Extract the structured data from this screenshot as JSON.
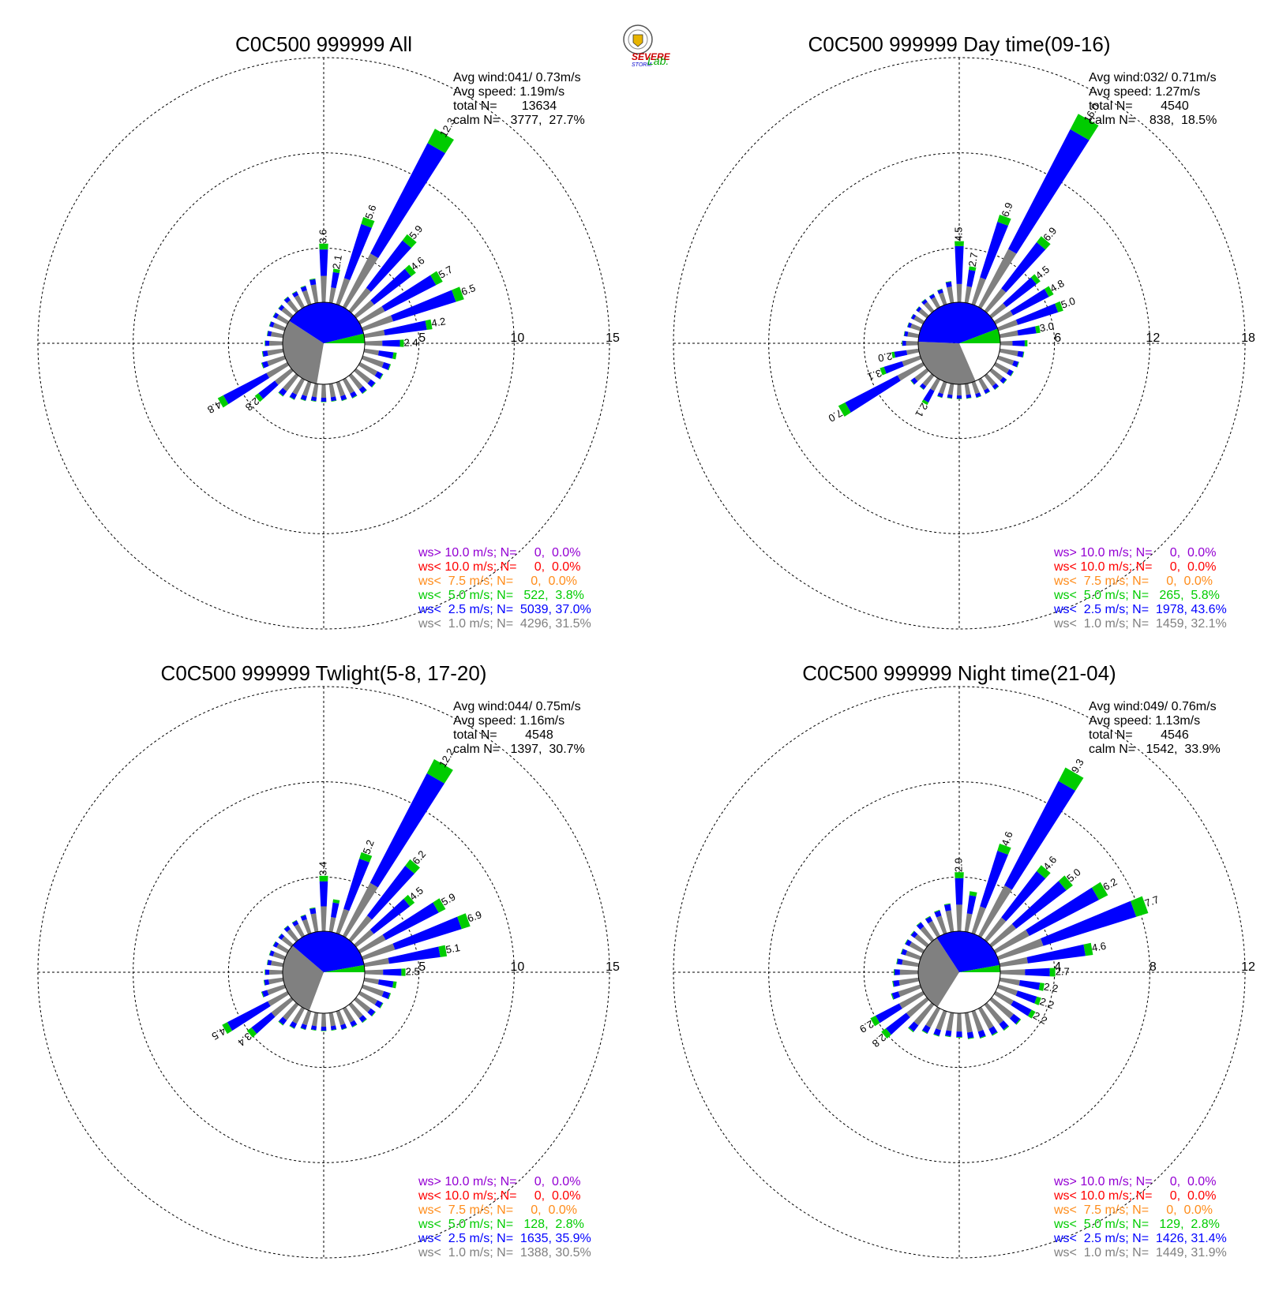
{
  "colors": {
    "ws_gt10": "#9400d3",
    "ws_lt10": "#ff0000",
    "ws_lt7_5": "#ff8c1a",
    "ws_lt5": "#00cc00",
    "ws_lt2_5": "#0000ff",
    "ws_lt1": "#808080",
    "grid": "#000000"
  },
  "logo": {
    "text_top": "SEVERE",
    "text_bottom": "STORM",
    "text_lab": "Lab."
  },
  "chart_data": [
    {
      "type": "wind-rose",
      "title": "C0C500 999999 All",
      "radial_ticks": [
        5,
        10,
        15
      ],
      "rmax": 15,
      "grid": true,
      "stats": {
        "avg_wind": "Avg wind:041/ 0.73m/s",
        "avg_speed": "Avg speed: 1.19m/s",
        "total": "total N=       13634",
        "calm": "calm N=   3777,  27.7%"
      },
      "legend": [
        {
          "text": "ws> 10.0 m/s; N=     0,  0.0%",
          "color_key": "ws_gt10"
        },
        {
          "text": "ws< 10.0 m/s; N=     0,  0.0%",
          "color_key": "ws_lt10"
        },
        {
          "text": "ws<  7.5 m/s; N=     0,  0.0%",
          "color_key": "ws_lt7_5"
        },
        {
          "text": "ws<  5.0 m/s; N=   522,  3.8%",
          "color_key": "ws_lt5"
        },
        {
          "text": "ws<  2.5 m/s; N=  5039, 37.0%",
          "color_key": "ws_lt2_5"
        },
        {
          "text": "ws<  1.0 m/s; N=  4296, 31.5%",
          "color_key": "ws_lt1"
        }
      ],
      "calm_pie": [
        27.7,
        31.5,
        37.0,
        3.8
      ],
      "petals": [
        {
          "dir": 0,
          "total": 3.6,
          "label": "3.6"
        },
        {
          "dir": 10,
          "total": 2.1,
          "label": "2.1"
        },
        {
          "dir": 20,
          "total": 5.6,
          "label": "5.6"
        },
        {
          "dir": 30,
          "total": 12.3,
          "label": "12.3"
        },
        {
          "dir": 40,
          "total": 5.9,
          "label": "5.9"
        },
        {
          "dir": 50,
          "total": 4.6,
          "label": "4.6"
        },
        {
          "dir": 60,
          "total": 5.7,
          "label": "5.7"
        },
        {
          "dir": 70,
          "total": 6.5,
          "label": "6.5"
        },
        {
          "dir": 80,
          "total": 4.2,
          "label": "4.2"
        },
        {
          "dir": 90,
          "total": 2.4,
          "label": "2.4"
        },
        {
          "dir": 100,
          "total": 2.0
        },
        {
          "dir": 110,
          "total": 1.8
        },
        {
          "dir": 120,
          "total": 1.6
        },
        {
          "dir": 130,
          "total": 1.5
        },
        {
          "dir": 140,
          "total": 1.4
        },
        {
          "dir": 150,
          "total": 1.3
        },
        {
          "dir": 160,
          "total": 1.2
        },
        {
          "dir": 170,
          "total": 1.1
        },
        {
          "dir": 180,
          "total": 1.1
        },
        {
          "dir": 190,
          "total": 1.1
        },
        {
          "dir": 200,
          "total": 1.2
        },
        {
          "dir": 210,
          "total": 1.4
        },
        {
          "dir": 220,
          "total": 1.6
        },
        {
          "dir": 230,
          "total": 2.8,
          "label": "2.8"
        },
        {
          "dir": 240,
          "total": 4.8,
          "label": "4.8"
        },
        {
          "dir": 250,
          "total": 1.5
        },
        {
          "dir": 260,
          "total": 1.3
        },
        {
          "dir": 270,
          "total": 1.1
        },
        {
          "dir": 280,
          "total": 1.0
        },
        {
          "dir": 290,
          "total": 1.0
        },
        {
          "dir": 300,
          "total": 1.0
        },
        {
          "dir": 310,
          "total": 1.0
        },
        {
          "dir": 320,
          "total": 1.1
        },
        {
          "dir": 330,
          "total": 1.1
        },
        {
          "dir": 340,
          "total": 1.2
        },
        {
          "dir": 350,
          "total": 1.5
        }
      ]
    },
    {
      "type": "wind-rose",
      "title": "C0C500 999999 Day time(09-16)",
      "radial_ticks": [
        6,
        12,
        18
      ],
      "rmax": 18,
      "grid": true,
      "stats": {
        "avg_wind": "Avg wind:032/ 0.71m/s",
        "avg_speed": "Avg speed: 1.27m/s",
        "total": "total N=        4540",
        "calm": "calm N=    838,  18.5%"
      },
      "legend": [
        {
          "text": "ws> 10.0 m/s; N=     0,  0.0%",
          "color_key": "ws_gt10"
        },
        {
          "text": "ws< 10.0 m/s; N=     0,  0.0%",
          "color_key": "ws_lt10"
        },
        {
          "text": "ws<  7.5 m/s; N=     0,  0.0%",
          "color_key": "ws_lt7_5"
        },
        {
          "text": "ws<  5.0 m/s; N=   265,  5.8%",
          "color_key": "ws_lt5"
        },
        {
          "text": "ws<  2.5 m/s; N=  1978, 43.6%",
          "color_key": "ws_lt2_5"
        },
        {
          "text": "ws<  1.0 m/s; N=  1459, 32.1%",
          "color_key": "ws_lt1"
        }
      ],
      "calm_pie": [
        18.5,
        32.1,
        43.6,
        5.8
      ],
      "petals": [
        {
          "dir": 0,
          "total": 4.5,
          "label": "4.5"
        },
        {
          "dir": 10,
          "total": 2.7,
          "label": "2.7"
        },
        {
          "dir": 20,
          "total": 6.9,
          "label": "6.9"
        },
        {
          "dir": 30,
          "total": 16.0,
          "label": "16.0"
        },
        {
          "dir": 40,
          "total": 6.9,
          "label": "6.9"
        },
        {
          "dir": 50,
          "total": 4.5,
          "label": "4.5"
        },
        {
          "dir": 60,
          "total": 4.8,
          "label": "4.8"
        },
        {
          "dir": 70,
          "total": 5.0,
          "label": "5.0"
        },
        {
          "dir": 80,
          "total": 3.0,
          "label": "3.0"
        },
        {
          "dir": 90,
          "total": 2.0
        },
        {
          "dir": 100,
          "total": 1.8
        },
        {
          "dir": 110,
          "total": 1.6
        },
        {
          "dir": 120,
          "total": 1.5
        },
        {
          "dir": 130,
          "total": 1.4
        },
        {
          "dir": 140,
          "total": 1.3
        },
        {
          "dir": 150,
          "total": 1.2
        },
        {
          "dir": 160,
          "total": 1.2
        },
        {
          "dir": 170,
          "total": 1.1
        },
        {
          "dir": 180,
          "total": 1.1
        },
        {
          "dir": 190,
          "total": 1.1
        },
        {
          "dir": 200,
          "total": 1.2
        },
        {
          "dir": 210,
          "total": 2.1,
          "label": "2.1"
        },
        {
          "dir": 220,
          "total": 1.3
        },
        {
          "dir": 230,
          "total": 1.5
        },
        {
          "dir": 240,
          "total": 7.0,
          "label": "7.0"
        },
        {
          "dir": 250,
          "total": 3.1,
          "label": "3.1"
        },
        {
          "dir": 260,
          "total": 2.0,
          "label": "2.0"
        },
        {
          "dir": 270,
          "total": 1.2
        },
        {
          "dir": 280,
          "total": 1.1
        },
        {
          "dir": 290,
          "total": 1.0
        },
        {
          "dir": 300,
          "total": 1.0
        },
        {
          "dir": 310,
          "total": 1.0
        },
        {
          "dir": 320,
          "total": 1.1
        },
        {
          "dir": 330,
          "total": 1.1
        },
        {
          "dir": 340,
          "total": 1.2
        },
        {
          "dir": 350,
          "total": 1.6
        }
      ]
    },
    {
      "type": "wind-rose",
      "title": "C0C500 999999 Twlight(5-8, 17-20)",
      "radial_ticks": [
        5,
        10,
        15
      ],
      "rmax": 15,
      "grid": true,
      "stats": {
        "avg_wind": "Avg wind:044/ 0.75m/s",
        "avg_speed": "Avg speed: 1.16m/s",
        "total": "total N=        4548",
        "calm": "calm N=   1397,  30.7%"
      },
      "legend": [
        {
          "text": "ws> 10.0 m/s; N=     0,  0.0%",
          "color_key": "ws_gt10"
        },
        {
          "text": "ws< 10.0 m/s; N=     0,  0.0%",
          "color_key": "ws_lt10"
        },
        {
          "text": "ws<  7.5 m/s; N=     0,  0.0%",
          "color_key": "ws_lt7_5"
        },
        {
          "text": "ws<  5.0 m/s; N=   128,  2.8%",
          "color_key": "ws_lt5"
        },
        {
          "text": "ws<  2.5 m/s; N=  1635, 35.9%",
          "color_key": "ws_lt2_5"
        },
        {
          "text": "ws<  1.0 m/s; N=  1388, 30.5%",
          "color_key": "ws_lt1"
        }
      ],
      "calm_pie": [
        30.7,
        30.5,
        35.9,
        2.8
      ],
      "petals": [
        {
          "dir": 0,
          "total": 3.4,
          "label": "3.4"
        },
        {
          "dir": 10,
          "total": 2.0
        },
        {
          "dir": 20,
          "total": 5.2,
          "label": "5.2"
        },
        {
          "dir": 30,
          "total": 12.2,
          "label": "12.2"
        },
        {
          "dir": 40,
          "total": 6.2,
          "label": "6.2"
        },
        {
          "dir": 50,
          "total": 4.5,
          "label": "4.5"
        },
        {
          "dir": 60,
          "total": 5.9,
          "label": "5.9"
        },
        {
          "dir": 70,
          "total": 6.9,
          "label": "6.9"
        },
        {
          "dir": 80,
          "total": 5.1,
          "label": "5.1"
        },
        {
          "dir": 90,
          "total": 2.5,
          "label": "2.5"
        },
        {
          "dir": 100,
          "total": 2.0
        },
        {
          "dir": 110,
          "total": 1.8
        },
        {
          "dir": 120,
          "total": 1.6
        },
        {
          "dir": 130,
          "total": 1.5
        },
        {
          "dir": 140,
          "total": 1.4
        },
        {
          "dir": 150,
          "total": 1.3
        },
        {
          "dir": 160,
          "total": 1.2
        },
        {
          "dir": 170,
          "total": 1.1
        },
        {
          "dir": 180,
          "total": 1.1
        },
        {
          "dir": 190,
          "total": 1.1
        },
        {
          "dir": 200,
          "total": 1.2
        },
        {
          "dir": 210,
          "total": 1.4
        },
        {
          "dir": 220,
          "total": 1.6
        },
        {
          "dir": 230,
          "total": 3.4,
          "label": "3.4"
        },
        {
          "dir": 240,
          "total": 4.5,
          "label": "4.5"
        },
        {
          "dir": 250,
          "total": 1.5
        },
        {
          "dir": 260,
          "total": 1.2
        },
        {
          "dir": 270,
          "total": 1.1
        },
        {
          "dir": 280,
          "total": 1.0
        },
        {
          "dir": 290,
          "total": 1.0
        },
        {
          "dir": 300,
          "total": 1.0
        },
        {
          "dir": 310,
          "total": 1.0
        },
        {
          "dir": 320,
          "total": 1.1
        },
        {
          "dir": 330,
          "total": 1.1
        },
        {
          "dir": 340,
          "total": 1.2
        },
        {
          "dir": 350,
          "total": 1.5
        }
      ]
    },
    {
      "type": "wind-rose",
      "title": "C0C500 999999 Night time(21-04)",
      "radial_ticks": [
        4,
        8,
        12
      ],
      "rmax": 12,
      "grid": true,
      "stats": {
        "avg_wind": "Avg wind:049/ 0.76m/s",
        "avg_speed": "Avg speed: 1.13m/s",
        "total": "total N=        4546",
        "calm": "calm N=   1542,  33.9%"
      },
      "legend": [
        {
          "text": "ws> 10.0 m/s; N=     0,  0.0%",
          "color_key": "ws_gt10"
        },
        {
          "text": "ws< 10.0 m/s; N=     0,  0.0%",
          "color_key": "ws_lt10"
        },
        {
          "text": "ws<  7.5 m/s; N=     0,  0.0%",
          "color_key": "ws_lt7_5"
        },
        {
          "text": "ws<  5.0 m/s; N=   129,  2.8%",
          "color_key": "ws_lt5"
        },
        {
          "text": "ws<  2.5 m/s; N=  1426, 31.4%",
          "color_key": "ws_lt2_5"
        },
        {
          "text": "ws<  1.0 m/s; N=  1449, 31.9%",
          "color_key": "ws_lt1"
        }
      ],
      "calm_pie": [
        33.9,
        31.9,
        31.4,
        2.8
      ],
      "petals": [
        {
          "dir": 0,
          "total": 2.9,
          "label": "2.9"
        },
        {
          "dir": 10,
          "total": 2.0
        },
        {
          "dir": 20,
          "total": 4.6,
          "label": "4.6"
        },
        {
          "dir": 30,
          "total": 9.3,
          "label": "9.3"
        },
        {
          "dir": 40,
          "total": 4.6,
          "label": "4.6"
        },
        {
          "dir": 50,
          "total": 5.0,
          "label": "5.0"
        },
        {
          "dir": 60,
          "total": 6.2,
          "label": "6.2"
        },
        {
          "dir": 70,
          "total": 7.7,
          "label": "7.7"
        },
        {
          "dir": 80,
          "total": 4.6,
          "label": "4.6"
        },
        {
          "dir": 90,
          "total": 2.7,
          "label": "2.7"
        },
        {
          "dir": 100,
          "total": 2.2,
          "label": "2.2"
        },
        {
          "dir": 110,
          "total": 2.2,
          "label": "2.2"
        },
        {
          "dir": 120,
          "total": 2.2,
          "label": "2.2"
        },
        {
          "dir": 130,
          "total": 1.8
        },
        {
          "dir": 140,
          "total": 1.6
        },
        {
          "dir": 150,
          "total": 1.5
        },
        {
          "dir": 160,
          "total": 1.4
        },
        {
          "dir": 170,
          "total": 1.3
        },
        {
          "dir": 180,
          "total": 1.2
        },
        {
          "dir": 190,
          "total": 1.2
        },
        {
          "dir": 200,
          "total": 1.3
        },
        {
          "dir": 210,
          "total": 1.4
        },
        {
          "dir": 220,
          "total": 1.7
        },
        {
          "dir": 230,
          "total": 2.8,
          "label": "2.8"
        },
        {
          "dir": 240,
          "total": 2.9,
          "label": "2.9"
        },
        {
          "dir": 250,
          "total": 1.5
        },
        {
          "dir": 260,
          "total": 1.3
        },
        {
          "dir": 270,
          "total": 1.2
        },
        {
          "dir": 280,
          "total": 1.1
        },
        {
          "dir": 290,
          "total": 1.0
        },
        {
          "dir": 300,
          "total": 1.0
        },
        {
          "dir": 310,
          "total": 1.0
        },
        {
          "dir": 320,
          "total": 1.1
        },
        {
          "dir": 330,
          "total": 1.1
        },
        {
          "dir": 340,
          "total": 1.2
        },
        {
          "dir": 350,
          "total": 1.4
        }
      ]
    }
  ]
}
